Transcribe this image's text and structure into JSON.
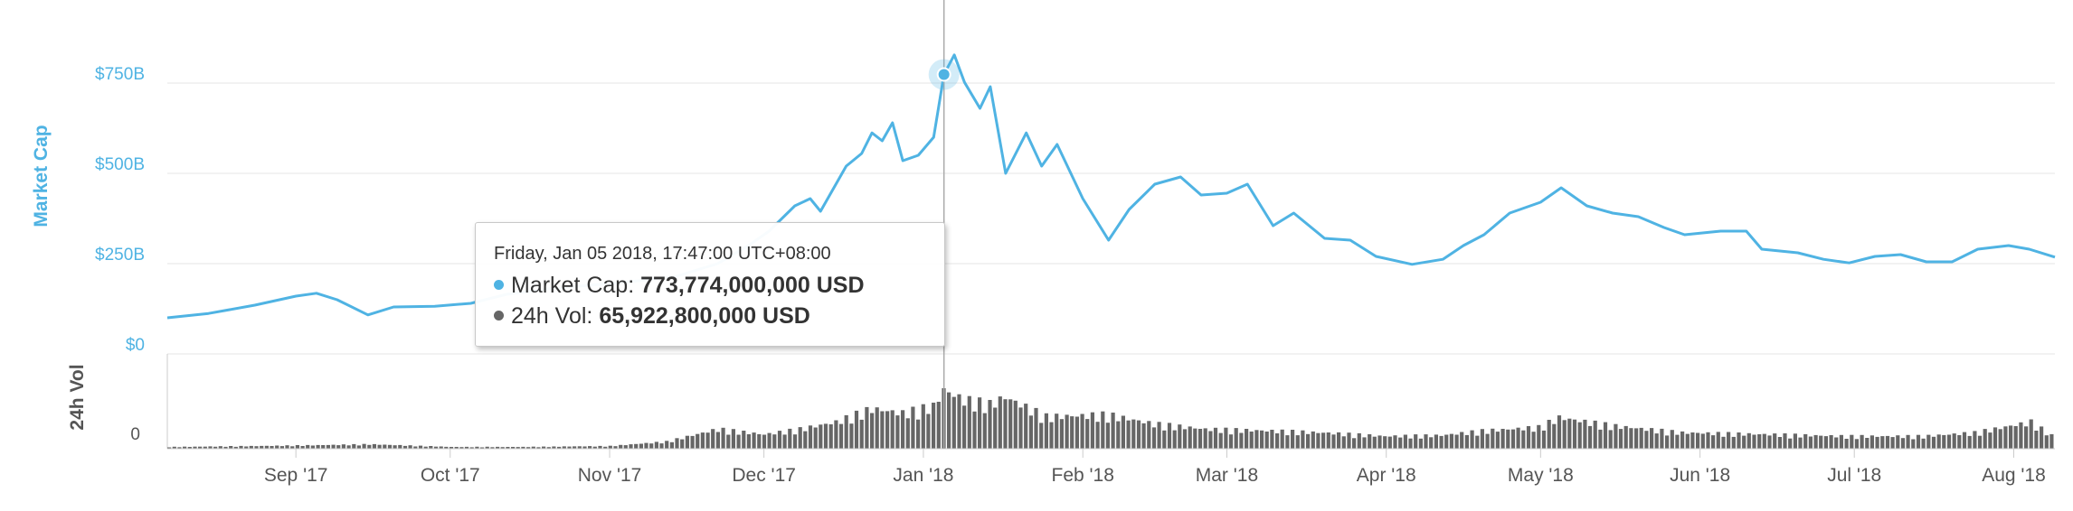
{
  "chart_data": {
    "type": "line",
    "x_range": [
      "2017-08-07",
      "2018-08-09"
    ],
    "x_ticks": [
      "Sep '17",
      "Oct '17",
      "Nov '17",
      "Dec '17",
      "Jan '18",
      "Feb '18",
      "Mar '18",
      "Apr '18",
      "May '18",
      "Jun '18",
      "Jul '18",
      "Aug '18"
    ],
    "y_axis": {
      "label": "Market Cap",
      "ticks": [
        "$0",
        "$250B",
        "$500B",
        "$750B"
      ],
      "ylim_billion_usd": [
        0,
        825
      ]
    },
    "volume_axis": {
      "label": "24h Vol",
      "ticks": [
        "0"
      ],
      "ylim_billion_usd": [
        0,
        90
      ]
    },
    "series": [
      {
        "name": "Market Cap",
        "unit": "billion USD",
        "color": "#4fb3e3",
        "points": [
          [
            "2017-08-07",
            100
          ],
          [
            "2017-08-15",
            112
          ],
          [
            "2017-08-24",
            135
          ],
          [
            "2017-09-01",
            160
          ],
          [
            "2017-09-05",
            168
          ],
          [
            "2017-09-09",
            150
          ],
          [
            "2017-09-15",
            108
          ],
          [
            "2017-09-20",
            130
          ],
          [
            "2017-09-28",
            132
          ],
          [
            "2017-10-05",
            140
          ],
          [
            "2017-10-12",
            165
          ],
          [
            "2017-10-20",
            180
          ],
          [
            "2017-11-05",
            200
          ],
          [
            "2017-11-14",
            215
          ],
          [
            "2017-11-22",
            250
          ],
          [
            "2017-11-28",
            300
          ],
          [
            "2017-12-02",
            340
          ],
          [
            "2017-12-07",
            410
          ],
          [
            "2017-12-10",
            430
          ],
          [
            "2017-12-12",
            395
          ],
          [
            "2017-12-17",
            520
          ],
          [
            "2017-12-20",
            555
          ],
          [
            "2017-12-22",
            612
          ],
          [
            "2017-12-24",
            590
          ],
          [
            "2017-12-26",
            640
          ],
          [
            "2017-12-28",
            535
          ],
          [
            "2017-12-31",
            550
          ],
          [
            "2018-01-03",
            600
          ],
          [
            "2018-01-05",
            774
          ],
          [
            "2018-01-07",
            828
          ],
          [
            "2018-01-09",
            752
          ],
          [
            "2018-01-12",
            680
          ],
          [
            "2018-01-14",
            740
          ],
          [
            "2018-01-17",
            500
          ],
          [
            "2018-01-21",
            612
          ],
          [
            "2018-01-24",
            520
          ],
          [
            "2018-01-27",
            580
          ],
          [
            "2018-02-01",
            430
          ],
          [
            "2018-02-06",
            315
          ],
          [
            "2018-02-10",
            400
          ],
          [
            "2018-02-15",
            470
          ],
          [
            "2018-02-20",
            490
          ],
          [
            "2018-02-24",
            440
          ],
          [
            "2018-03-01",
            445
          ],
          [
            "2018-03-05",
            470
          ],
          [
            "2018-03-10",
            355
          ],
          [
            "2018-03-14",
            390
          ],
          [
            "2018-03-20",
            320
          ],
          [
            "2018-03-25",
            315
          ],
          [
            "2018-03-30",
            270
          ],
          [
            "2018-04-06",
            248
          ],
          [
            "2018-04-12",
            262
          ],
          [
            "2018-04-16",
            300
          ],
          [
            "2018-04-20",
            330
          ],
          [
            "2018-04-25",
            390
          ],
          [
            "2018-05-01",
            420
          ],
          [
            "2018-05-05",
            460
          ],
          [
            "2018-05-10",
            410
          ],
          [
            "2018-05-15",
            390
          ],
          [
            "2018-05-20",
            380
          ],
          [
            "2018-05-25",
            350
          ],
          [
            "2018-05-29",
            330
          ],
          [
            "2018-06-05",
            340
          ],
          [
            "2018-06-10",
            340
          ],
          [
            "2018-06-13",
            290
          ],
          [
            "2018-06-20",
            280
          ],
          [
            "2018-06-25",
            262
          ],
          [
            "2018-06-30",
            252
          ],
          [
            "2018-07-05",
            270
          ],
          [
            "2018-07-10",
            275
          ],
          [
            "2018-07-15",
            255
          ],
          [
            "2018-07-20",
            255
          ],
          [
            "2018-07-25",
            290
          ],
          [
            "2018-07-31",
            300
          ],
          [
            "2018-08-04",
            290
          ],
          [
            "2018-08-09",
            268
          ]
        ]
      },
      {
        "name": "24h Vol",
        "unit": "billion USD",
        "color": "#666666",
        "points": [
          [
            "2017-08-07",
            2
          ],
          [
            "2017-08-24",
            3
          ],
          [
            "2017-09-05",
            4
          ],
          [
            "2017-09-15",
            5
          ],
          [
            "2017-10-01",
            2
          ],
          [
            "2017-10-15",
            2
          ],
          [
            "2017-11-01",
            3
          ],
          [
            "2017-11-12",
            8
          ],
          [
            "2017-11-22",
            22
          ],
          [
            "2017-12-01",
            16
          ],
          [
            "2017-12-08",
            22
          ],
          [
            "2017-12-15",
            30
          ],
          [
            "2017-12-22",
            45
          ],
          [
            "2017-12-28",
            40
          ],
          [
            "2018-01-03",
            48
          ],
          [
            "2018-01-05",
            66
          ],
          [
            "2018-01-09",
            55
          ],
          [
            "2018-01-14",
            50
          ],
          [
            "2018-01-17",
            58
          ],
          [
            "2018-01-25",
            36
          ],
          [
            "2018-02-06",
            38
          ],
          [
            "2018-02-15",
            28
          ],
          [
            "2018-02-25",
            22
          ],
          [
            "2018-03-10",
            20
          ],
          [
            "2018-03-20",
            18
          ],
          [
            "2018-04-01",
            14
          ],
          [
            "2018-04-12",
            15
          ],
          [
            "2018-04-20",
            20
          ],
          [
            "2018-05-01",
            24
          ],
          [
            "2018-05-05",
            35
          ],
          [
            "2018-05-15",
            26
          ],
          [
            "2018-05-29",
            18
          ],
          [
            "2018-06-15",
            16
          ],
          [
            "2018-06-30",
            14
          ],
          [
            "2018-07-15",
            14
          ],
          [
            "2018-07-25",
            18
          ],
          [
            "2018-08-05",
            30
          ],
          [
            "2018-08-09",
            15
          ]
        ]
      }
    ],
    "hover": {
      "date": "2018-01-05",
      "market_cap_billion_usd": 773.774,
      "volume_billion_usd": 65.9228
    }
  },
  "tooltip": {
    "date_text": "Friday, Jan 05 2018, 17:47:00 UTC+08:00",
    "market_cap_label": "Market Cap:",
    "market_cap_value": "773,774,000,000 USD",
    "volume_label": "24h Vol:",
    "volume_value": "65,922,800,000 USD"
  }
}
